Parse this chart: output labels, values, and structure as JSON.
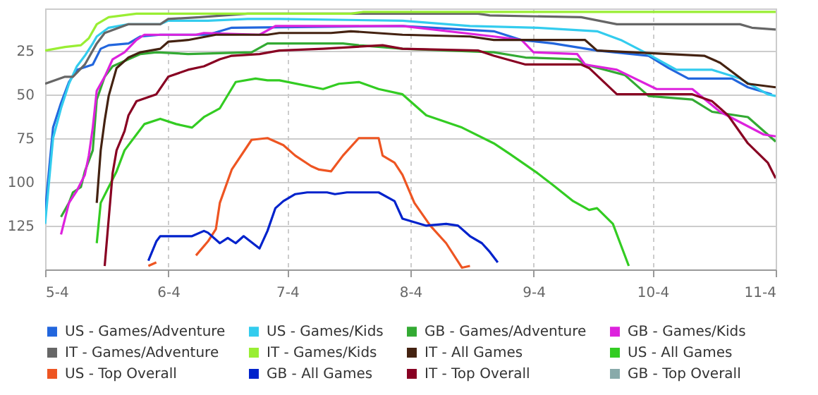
{
  "chart_data": {
    "type": "line",
    "xlim": [
      "--05-04",
      "--11-04"
    ],
    "xticks": [
      {
        "value": "--05-04",
        "label": "5-4"
      },
      {
        "value": "--06-04",
        "label": "6-4"
      },
      {
        "value": "--07-04",
        "label": "7-4"
      },
      {
        "value": "--08-04",
        "label": "8-4"
      },
      {
        "value": "--09-04",
        "label": "9-4"
      },
      {
        "value": "--10-04",
        "label": "10-4"
      },
      {
        "value": "--11-04",
        "label": "11-4"
      }
    ],
    "ylim": [
      150,
      1
    ],
    "yticks": [
      25,
      50,
      75,
      100,
      125
    ],
    "grid": true,
    "legend": "bottom",
    "series": [
      {
        "name": "US - Games/Adventure",
        "color": "#2266dd",
        "x": [
          "--05-04",
          "--05-06",
          "--05-08",
          "--05-10",
          "--05-12",
          "--05-16",
          "--05-18",
          "--05-20",
          "--05-25",
          "--05-28",
          "--06-02",
          "--06-14",
          "--06-20",
          "--08-02",
          "--08-25",
          "--09-01",
          "--09-09",
          "--09-20",
          "--10-03",
          "--10-08",
          "--10-13",
          "--10-24",
          "--10-28",
          "--11-03"
        ],
        "values": [
          117,
          69,
          55,
          43,
          36,
          33,
          24,
          22,
          21,
          17,
          16,
          16,
          12,
          11,
          14,
          19,
          21,
          25,
          28,
          35,
          41,
          41,
          46,
          50
        ]
      },
      {
        "name": "US - Games/Kids",
        "color": "#33ccee",
        "x": [
          "--05-04",
          "--05-06",
          "--05-08",
          "--05-10",
          "--05-12",
          "--05-14",
          "--05-16",
          "--05-17",
          "--05-20",
          "--05-25",
          "--06-02",
          "--06-04",
          "--06-14",
          "--06-24",
          "--07-02",
          "--08-02",
          "--08-19",
          "--09-05",
          "--09-20",
          "--09-26",
          "--10-02",
          "--10-10",
          "--10-19",
          "--10-26",
          "--11-02",
          "--11-04"
        ],
        "values": [
          124,
          75,
          58,
          44,
          34,
          28,
          21,
          17,
          12,
          10,
          10,
          8,
          8,
          7,
          7,
          8,
          11,
          12,
          14,
          19,
          26,
          36,
          36,
          41,
          50,
          51
        ]
      },
      {
        "name": "GB - Games/Adventure",
        "color": "#33aa33",
        "x": [
          "--05-08",
          "--05-10",
          "--05-11",
          "--05-13",
          "--05-14",
          "--05-16",
          "--05-17",
          "--05-19",
          "--05-21",
          "--05-25",
          "--05-28",
          "--06-01",
          "--06-09",
          "--06-25",
          "--06-29",
          "--07-18",
          "--07-22",
          "--08-02",
          "--08-25",
          "--09-02",
          "--09-15",
          "--09-17",
          "--09-27",
          "--10-03",
          "--10-14",
          "--10-19",
          "--10-28",
          "--11-04"
        ],
        "values": [
          120,
          112,
          106,
          103,
          94,
          82,
          53,
          40,
          34,
          30,
          27,
          26,
          27,
          26,
          21,
          21,
          22,
          24,
          26,
          29,
          30,
          33,
          39,
          51,
          53,
          60,
          63,
          77
        ]
      },
      {
        "name": "GB - Games/Kids",
        "color": "#dd22dd",
        "x": [
          "--05-08",
          "--05-10",
          "--05-12",
          "--05-14",
          "--05-15",
          "--05-16",
          "--05-17",
          "--05-19",
          "--05-21",
          "--05-24",
          "--05-27",
          "--05-29",
          "--06-11",
          "--06-13",
          "--06-27",
          "--07-01",
          "--08-02",
          "--08-25",
          "--09-01",
          "--09-04",
          "--09-15",
          "--09-17",
          "--09-25",
          "--10-05",
          "--10-14",
          "--10-21",
          "--11-01",
          "--11-04"
        ],
        "values": [
          130,
          112,
          105,
          96,
          85,
          69,
          48,
          40,
          30,
          26,
          19,
          16,
          16,
          15,
          16,
          11,
          11,
          17,
          19,
          26,
          27,
          33,
          36,
          47,
          47,
          60,
          73,
          74
        ]
      },
      {
        "name": "IT - Games/Adventure",
        "color": "#666666",
        "x": [
          "--05-04",
          "--05-09",
          "--05-11",
          "--05-14",
          "--05-17",
          "--05-19",
          "--05-25",
          "--06-02",
          "--06-04",
          "--06-12",
          "--06-24",
          "--08-21",
          "--08-24",
          "--09-16",
          "--09-25",
          "--10-26",
          "--10-29",
          "--11-04"
        ],
        "values": [
          44,
          40,
          40,
          33,
          21,
          15,
          10,
          10,
          7,
          6,
          4,
          4,
          5,
          6,
          10,
          10,
          12,
          13
        ]
      },
      {
        "name": "IT - Games/Kids",
        "color": "#99ee33",
        "x": [
          "--05-04",
          "--05-09",
          "--05-13",
          "--05-15",
          "--05-17",
          "--05-20",
          "--05-27",
          "--07-20",
          "--07-23",
          "--11-04"
        ],
        "values": [
          25,
          23,
          22,
          18,
          10,
          6,
          4,
          4,
          3,
          3
        ]
      },
      {
        "name": "IT - All Games",
        "color": "#442211",
        "x": [
          "--05-17",
          "--05-18",
          "--05-19",
          "--05-20",
          "--05-22",
          "--05-25",
          "--05-28",
          "--06-02",
          "--06-04",
          "--06-09",
          "--06-16",
          "--06-29",
          "--07-02",
          "--07-15",
          "--07-20",
          "--08-02",
          "--08-19",
          "--08-25",
          "--09-17",
          "--09-20",
          "--10-17",
          "--10-21",
          "--10-28",
          "--11-04"
        ],
        "values": [
          112,
          82,
          65,
          51,
          35,
          29,
          26,
          24,
          20,
          19,
          16,
          16,
          15,
          15,
          14,
          16,
          17,
          19,
          19,
          25,
          28,
          32,
          44,
          46
        ]
      },
      {
        "name": "US - All Games",
        "color": "#33cc22",
        "x": [
          "--05-17",
          "--05-18",
          "--05-20",
          "--05-22",
          "--05-24",
          "--05-27",
          "--05-29",
          "--06-02",
          "--06-06",
          "--06-10",
          "--06-13",
          "--06-17",
          "--06-21",
          "--06-26",
          "--06-29",
          "--07-02",
          "--07-13",
          "--07-17",
          "--07-22",
          "--07-27",
          "--08-02",
          "--08-08",
          "--08-17",
          "--08-25",
          "--08-29",
          "--09-05",
          "--09-09",
          "--09-14",
          "--09-18",
          "--09-20",
          "--09-24",
          "--09-26",
          "--09-28"
        ],
        "values": [
          135,
          112,
          103,
          94,
          82,
          73,
          67,
          64,
          67,
          69,
          63,
          58,
          43,
          41,
          42,
          42,
          47,
          44,
          43,
          47,
          50,
          62,
          69,
          78,
          84,
          95,
          102,
          111,
          116,
          115,
          124,
          136,
          148
        ]
      },
      {
        "name": "US - Top Overall",
        "color": "#ee5522",
        "x": [
          "--05-30",
          "--06-01",
          "--06-04",
          "--06-07",
          "--06-09",
          "--06-11",
          "--06-14",
          "--06-16",
          "--06-17",
          "--06-20",
          "--06-25",
          "--06-29",
          "--07-03",
          "--07-06",
          "--07-10",
          "--07-12",
          "--07-15",
          "--07-18",
          "--07-22",
          "--07-27",
          "--07-28",
          "--07-31",
          "--08-02",
          "--08-05",
          "--08-09",
          "--08-13",
          "--08-17",
          "--08-19"
        ],
        "values": [
          148,
          146,
          null,
          null,
          null,
          142,
          134,
          127,
          112,
          93,
          76,
          75,
          79,
          85,
          91,
          93,
          94,
          85,
          75,
          75,
          85,
          89,
          96,
          112,
          125,
          135,
          149,
          148
        ]
      },
      {
        "name": "GB - All Games",
        "color": "#0022cc",
        "x": [
          "--05-30",
          "--06-01",
          "--06-02",
          "--06-10",
          "--06-13",
          "--06-14",
          "--06-17",
          "--06-19",
          "--06-21",
          "--06-23",
          "--06-27",
          "--06-29",
          "--07-01",
          "--07-03",
          "--07-06",
          "--07-09",
          "--07-14",
          "--07-16",
          "--07-19",
          "--07-27",
          "--07-31",
          "--08-02",
          "--08-08",
          "--08-13",
          "--08-16",
          "--08-19",
          "--08-22",
          "--08-24",
          "--08-26"
        ],
        "values": [
          145,
          134,
          131,
          131,
          128,
          129,
          135,
          132,
          135,
          131,
          138,
          128,
          115,
          111,
          107,
          106,
          106,
          107,
          106,
          106,
          111,
          121,
          125,
          124,
          125,
          131,
          135,
          140,
          146
        ]
      },
      {
        "name": "IT - Top Overall",
        "color": "#880022",
        "x": [
          "--05-19",
          "--05-21",
          "--05-22",
          "--05-24",
          "--05-25",
          "--05-27",
          "--06-01",
          "--06-04",
          "--06-09",
          "--06-13",
          "--06-17",
          "--06-20",
          "--06-27",
          "--07-02",
          "--07-13",
          "--07-28",
          "--08-02",
          "--08-21",
          "--08-25",
          "--09-02",
          "--09-16",
          "--09-18",
          "--09-25",
          "--10-14",
          "--10-19",
          "--10-23",
          "--10-28",
          "--11-02",
          "--11-04"
        ],
        "values": [
          148,
          95,
          82,
          71,
          62,
          54,
          50,
          40,
          36,
          34,
          30,
          28,
          27,
          25,
          24,
          22,
          24,
          25,
          28,
          33,
          33,
          35,
          50,
          50,
          54,
          62,
          78,
          89,
          98
        ]
      },
      {
        "name": "GB - Top Overall",
        "color": "#88aaaa"
      }
    ]
  }
}
